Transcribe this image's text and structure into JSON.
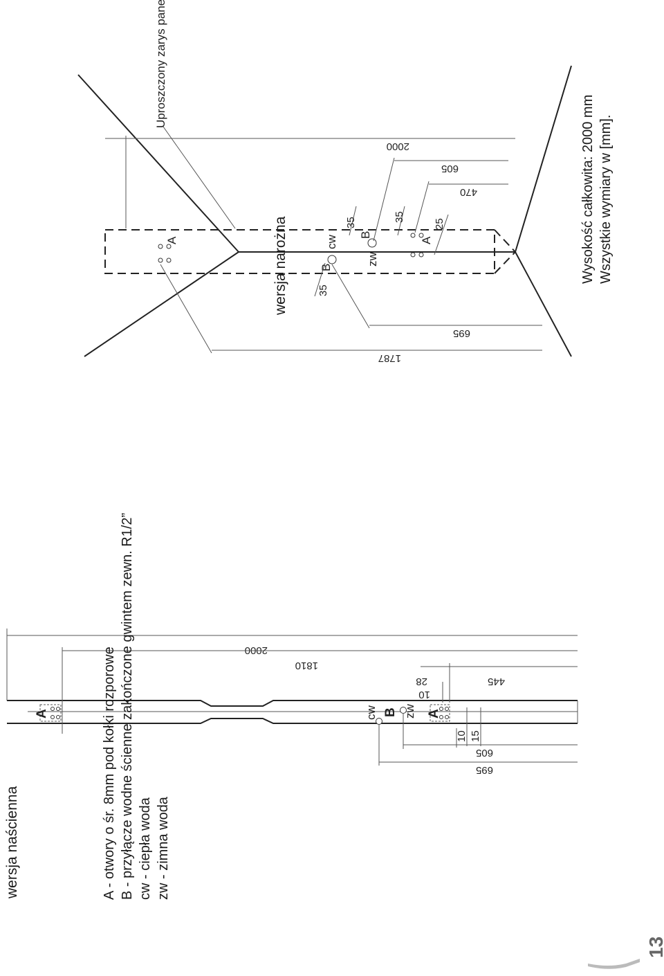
{
  "titles": {
    "wall": "wersja naścienna",
    "corner": "wersja narożna"
  },
  "wall_version": {
    "labels": {
      "A_top": "A",
      "cw": "cw",
      "B": "B",
      "zw": "zw",
      "A_bottom": "A"
    },
    "dimensions": {
      "d2000": "2000",
      "d1810": "1810",
      "d28": "28",
      "d10_top": "10",
      "d445": "445",
      "d10_side": "10",
      "d15": "15",
      "d605": "605",
      "d695": "695"
    }
  },
  "corner_version": {
    "panel_note": "Uproszczony zarys panela",
    "labels": {
      "A_upper": "A",
      "cw": "cw",
      "B_upper": "B",
      "B_lower": "B",
      "zw": "zw",
      "A_lower": "A"
    },
    "dimensions": {
      "d2000": "2000",
      "d605": "605",
      "d470": "470",
      "d35_a": "35",
      "d35_b": "35",
      "d25": "25",
      "d35_c": "35",
      "d695": "695",
      "d1787": "1787"
    },
    "notes": {
      "total_height": "Wysokość całkowita: 2000 mm",
      "units": "Wszystkie wymiary w [mm]."
    }
  },
  "legend": {
    "A": "A - otwory o śr. 8mm pod kołki rozporowe",
    "B": "B - przyłącze wodne ścienne zakończone gwintem zewn. R1/2”",
    "cw": "cw - ciepła woda",
    "zw": "zw - zimna woda"
  },
  "page_number": "13"
}
